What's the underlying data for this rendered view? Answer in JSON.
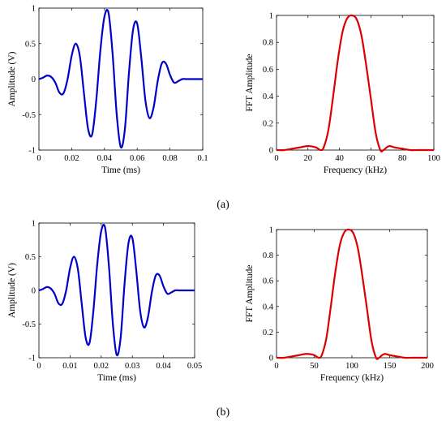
{
  "chart_data": [
    {
      "type": "line",
      "panel": "(a)",
      "xlabel": "Time (ms)",
      "ylabel": "Amplitude (V)",
      "xlim": [
        0,
        0.1
      ],
      "ylim": [
        -1,
        1
      ],
      "xticks": [
        "0",
        "0.02",
        "0.04",
        "0.06",
        "0.08",
        "0.1"
      ],
      "yticks": [
        "-1",
        "-0.5",
        "0",
        "0.5",
        "1"
      ],
      "series": [
        {
          "color": "#0000cc",
          "x": [
            0,
            0.0025,
            0.005,
            0.0075,
            0.01,
            0.0125,
            0.015,
            0.0175,
            0.02,
            0.0225,
            0.025,
            0.0275,
            0.03,
            0.0325,
            0.035,
            0.0375,
            0.04,
            0.0425,
            0.045,
            0.0475,
            0.05,
            0.0525,
            0.055,
            0.0575,
            0.06,
            0.0625,
            0.065,
            0.0675,
            0.07,
            0.0725,
            0.075,
            0.0775,
            0.08,
            0.0825,
            0.085,
            0.0875,
            0.09,
            0.0925,
            0.095,
            0.0975,
            0.1
          ],
          "y": [
            0,
            0.02,
            0.05,
            0.03,
            -0.05,
            -0.19,
            -0.2,
            0,
            0.33,
            0.5,
            0.32,
            -0.2,
            -0.7,
            -0.78,
            -0.3,
            0.4,
            0.88,
            0.93,
            0.35,
            -0.5,
            -0.96,
            -0.7,
            0.1,
            0.7,
            0.78,
            0.3,
            -0.3,
            -0.55,
            -0.4,
            -0.03,
            0.22,
            0.22,
            0.06,
            -0.05,
            -0.03,
            0,
            0,
            0,
            0,
            0,
            0
          ]
        }
      ]
    },
    {
      "type": "line",
      "panel": "(a)",
      "xlabel": "Frequency (kHz)",
      "ylabel": "FFT Amplitude",
      "xlim": [
        0,
        100
      ],
      "ylim": [
        0,
        1
      ],
      "xticks": [
        "0",
        "20",
        "40",
        "60",
        "80",
        "100"
      ],
      "yticks": [
        "0",
        "0.2",
        "0.4",
        "0.6",
        "0.8",
        "1"
      ],
      "series": [
        {
          "color": "#dd0000",
          "x": [
            0,
            5,
            10,
            15,
            20,
            25,
            28,
            30,
            33,
            36,
            39,
            42,
            45,
            48,
            51,
            54,
            57,
            60,
            63,
            66,
            68,
            70,
            72,
            75,
            80,
            85,
            90,
            95,
            100
          ],
          "y": [
            0,
            0,
            0.01,
            0.02,
            0.03,
            0.02,
            0,
            0.02,
            0.15,
            0.4,
            0.67,
            0.88,
            0.98,
            1.0,
            0.97,
            0.85,
            0.63,
            0.38,
            0.13,
            0,
            0,
            0.02,
            0.03,
            0.02,
            0.01,
            0,
            0,
            0,
            0
          ]
        }
      ]
    },
    {
      "type": "line",
      "panel": "(b)",
      "xlabel": "Time (ms)",
      "ylabel": "Amplitude (V)",
      "xlim": [
        0,
        0.05
      ],
      "ylim": [
        -1,
        1
      ],
      "xticks": [
        "0",
        "0.01",
        "0.02",
        "0.03",
        "0.04",
        "0.05"
      ],
      "yticks": [
        "-1",
        "-0.5",
        "0",
        "0.5",
        "1"
      ],
      "series": [
        {
          "color": "#0000cc",
          "x": [
            0,
            0.00125,
            0.0025,
            0.00375,
            0.005,
            0.00625,
            0.0075,
            0.00875,
            0.01,
            0.01125,
            0.0125,
            0.01375,
            0.015,
            0.01625,
            0.0175,
            0.01875,
            0.02,
            0.02125,
            0.0225,
            0.02375,
            0.025,
            0.02625,
            0.0275,
            0.02875,
            0.03,
            0.03125,
            0.0325,
            0.03375,
            0.035,
            0.03625,
            0.0375,
            0.03875,
            0.04,
            0.04125,
            0.0425,
            0.04375,
            0.045,
            0.04625,
            0.0475,
            0.04875,
            0.05
          ],
          "y": [
            0,
            0.02,
            0.05,
            0.03,
            -0.05,
            -0.19,
            -0.2,
            0,
            0.33,
            0.5,
            0.32,
            -0.2,
            -0.7,
            -0.78,
            -0.3,
            0.4,
            0.88,
            0.93,
            0.35,
            -0.5,
            -0.96,
            -0.7,
            0.1,
            0.7,
            0.78,
            0.3,
            -0.3,
            -0.55,
            -0.4,
            -0.03,
            0.22,
            0.22,
            0.06,
            -0.05,
            -0.03,
            0,
            0,
            0,
            0,
            0,
            0
          ]
        }
      ]
    },
    {
      "type": "line",
      "panel": "(b)",
      "xlabel": "Frequency (kHz)",
      "ylabel": "FFT Amplitude",
      "xlim": [
        0,
        200
      ],
      "ylim": [
        0,
        1
      ],
      "xticks": [
        "0",
        "50",
        "100",
        "150",
        "200"
      ],
      "yticks": [
        "0",
        "0.2",
        "0.4",
        "0.6",
        "0.8",
        "1"
      ],
      "series": [
        {
          "color": "#dd0000",
          "x": [
            0,
            10,
            20,
            30,
            40,
            50,
            56,
            60,
            66,
            72,
            78,
            84,
            90,
            96,
            102,
            108,
            114,
            120,
            126,
            132,
            136,
            140,
            144,
            150,
            160,
            170,
            180,
            190,
            200
          ],
          "y": [
            0,
            0,
            0.01,
            0.02,
            0.03,
            0.02,
            0,
            0.02,
            0.15,
            0.4,
            0.67,
            0.88,
            0.98,
            1.0,
            0.97,
            0.85,
            0.63,
            0.38,
            0.13,
            0,
            0,
            0.02,
            0.03,
            0.02,
            0.01,
            0,
            0,
            0,
            0
          ]
        }
      ]
    }
  ],
  "captions": [
    "(a)",
    "(b)"
  ]
}
